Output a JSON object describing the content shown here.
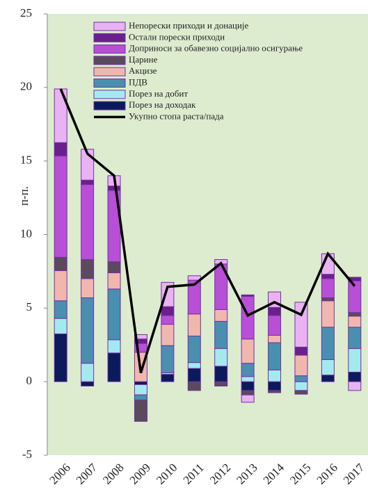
{
  "chart_data": {
    "type": "bar",
    "stacked": true,
    "y_label": "п-п.",
    "categories": [
      "2006",
      "2007",
      "2008",
      "2009",
      "2010",
      "2011",
      "2012",
      "2013",
      "2014",
      "2015",
      "2016",
      "2017"
    ],
    "ylim": [
      -5,
      25
    ],
    "yticks": [
      -5,
      0,
      5,
      10,
      15,
      20,
      25
    ],
    "series": [
      {
        "name": "Порез на доходак",
        "color": "#0b1a5c",
        "values": [
          3.25,
          -0.3,
          1.95,
          -0.2,
          0.5,
          0.9,
          1.05,
          -0.6,
          -0.6,
          0,
          0.45,
          0.65
        ]
      },
      {
        "name": "Порез на добит",
        "color": "#a4e9ef",
        "values": [
          1.05,
          1.25,
          0.9,
          -0.7,
          0.1,
          0.4,
          1.2,
          0.35,
          0.8,
          -0.6,
          1.05,
          1.6
        ]
      },
      {
        "name": "ПДВ",
        "color": "#4a8fb0",
        "values": [
          1.2,
          4.45,
          3.45,
          -0.35,
          1.85,
          1.8,
          1.85,
          0.9,
          1.85,
          0.4,
          2.2,
          1.45
        ]
      },
      {
        "name": "Акцизе",
        "color": "#f1b6ae",
        "values": [
          2.05,
          1.3,
          1.1,
          2.0,
          1.45,
          1.5,
          0.8,
          1.65,
          0.5,
          1.4,
          1.8,
          0.75
        ]
      },
      {
        "name": "Царине",
        "color": "#5b4a5e",
        "values": [
          0.9,
          1.3,
          0.75,
          -1.45,
          0,
          -0.6,
          -0.3,
          -0.3,
          -0.15,
          -0.25,
          0.2,
          0.25
        ]
      },
      {
        "name": "Доприноси за обавезно социјално осигурање",
        "color": "#b84fd6",
        "values": [
          6.9,
          5.1,
          4.85,
          0.6,
          0.6,
          2.3,
          3.1,
          2.9,
          1.35,
          0,
          1.3,
          2.15
        ]
      },
      {
        "name": "Остали порески приходи",
        "color": "#6b1f8c",
        "values": [
          0.9,
          0.3,
          0.3,
          0.3,
          0.6,
          0,
          0,
          0.1,
          0.55,
          0.55,
          0.3,
          0.25
        ]
      },
      {
        "name": "Непорески приходи и донације",
        "color": "#e9b2f2",
        "values": [
          3.65,
          2.1,
          0.7,
          0.3,
          1.65,
          0.3,
          0.3,
          -0.5,
          1.05,
          3.05,
          1.4,
          -0.6
        ]
      }
    ],
    "line": {
      "name": "Укупно стопа раста/пада",
      "color": "#000000",
      "values": [
        19.9,
        15.5,
        14.0,
        0.6,
        6.45,
        6.6,
        8.05,
        4.5,
        5.4,
        4.55,
        8.7,
        6.5
      ]
    }
  }
}
